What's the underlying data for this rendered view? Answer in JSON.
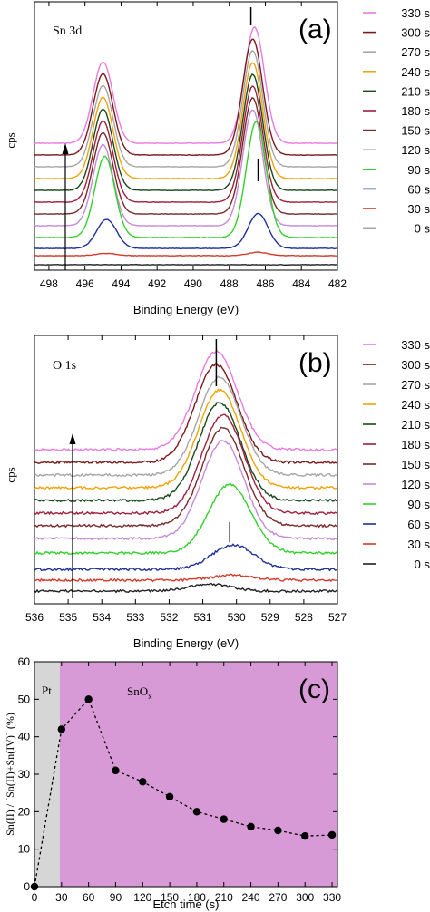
{
  "times": [
    "330 s",
    "300 s",
    "270 s",
    "240 s",
    "210 s",
    "180 s",
    "150 s",
    "120 s",
    "90 s",
    "60 s",
    "30 s",
    "0 s"
  ],
  "colors": [
    "#e97be0",
    "#7a1a1a",
    "#a6a6a6",
    "#f0a30a",
    "#1a4a1a",
    "#a01f3b",
    "#7a2a2a",
    "#c58ad8",
    "#32d12a",
    "#1f2f9a",
    "#d43a2a",
    "#222222"
  ],
  "chart_data": [
    {
      "type": "line",
      "panel": "(a)",
      "annotation": "Sn 3d",
      "xlabel": "Binding Energy (eV)",
      "ylabel": "cps",
      "xlim": [
        498.8,
        482
      ],
      "reversed_x": true,
      "x_ticks": [
        "498",
        "496",
        "494",
        "492",
        "490",
        "488",
        "486",
        "484",
        "482"
      ],
      "series": [
        {
          "name": "330 s",
          "peaks": [
            {
              "x": 495.0,
              "height": 0.7
            },
            {
              "x": 486.6,
              "height": 1.0
            }
          ]
        },
        {
          "name": "300 s",
          "peaks": [
            {
              "x": 495.0,
              "height": 0.7
            },
            {
              "x": 486.7,
              "height": 1.0
            }
          ]
        },
        {
          "name": "270 s",
          "peaks": [
            {
              "x": 495.0,
              "height": 0.7
            },
            {
              "x": 486.7,
              "height": 1.0
            }
          ]
        },
        {
          "name": "240 s",
          "peaks": [
            {
              "x": 495.0,
              "height": 0.7
            },
            {
              "x": 486.7,
              "height": 1.0
            }
          ]
        },
        {
          "name": "210 s",
          "peaks": [
            {
              "x": 495.0,
              "height": 0.7
            },
            {
              "x": 486.7,
              "height": 1.0
            }
          ]
        },
        {
          "name": "180 s",
          "peaks": [
            {
              "x": 495.0,
              "height": 0.7
            },
            {
              "x": 486.7,
              "height": 1.0
            }
          ]
        },
        {
          "name": "150 s",
          "peaks": [
            {
              "x": 495.0,
              "height": 0.7
            },
            {
              "x": 486.7,
              "height": 1.0
            }
          ]
        },
        {
          "name": "120 s",
          "peaks": [
            {
              "x": 495.0,
              "height": 0.7
            },
            {
              "x": 486.7,
              "height": 1.0
            }
          ]
        },
        {
          "name": "90 s",
          "peaks": [
            {
              "x": 494.9,
              "height": 0.7
            },
            {
              "x": 486.5,
              "height": 1.0
            }
          ]
        },
        {
          "name": "60 s",
          "peaks": [
            {
              "x": 494.8,
              "height": 0.25
            },
            {
              "x": 486.4,
              "height": 0.3
            }
          ]
        },
        {
          "name": "30 s",
          "peaks": [
            {
              "x": 494.8,
              "height": 0.02
            },
            {
              "x": 486.4,
              "height": 0.03
            }
          ]
        },
        {
          "name": "0 s",
          "peaks": []
        }
      ],
      "markers_x": [
        486.8,
        486.4
      ]
    },
    {
      "type": "line",
      "panel": "(b)",
      "annotation": "O 1s",
      "xlabel": "Binding Energy (eV)",
      "ylabel": "cps",
      "xlim": [
        536,
        527
      ],
      "reversed_x": true,
      "x_ticks": [
        "536",
        "535",
        "534",
        "533",
        "532",
        "531",
        "530",
        "529",
        "528",
        "527"
      ],
      "series": [
        {
          "name": "330 s",
          "peak": {
            "x": 530.6,
            "height": 1.0
          }
        },
        {
          "name": "300 s",
          "peak": {
            "x": 530.6,
            "height": 1.0
          }
        },
        {
          "name": "270 s",
          "peak": {
            "x": 530.5,
            "height": 1.0
          }
        },
        {
          "name": "240 s",
          "peak": {
            "x": 530.5,
            "height": 1.0
          }
        },
        {
          "name": "210 s",
          "peak": {
            "x": 530.5,
            "height": 1.0
          }
        },
        {
          "name": "180 s",
          "peak": {
            "x": 530.4,
            "height": 1.0
          }
        },
        {
          "name": "150 s",
          "peak": {
            "x": 530.4,
            "height": 1.0
          }
        },
        {
          "name": "120 s",
          "peak": {
            "x": 530.4,
            "height": 1.0
          }
        },
        {
          "name": "90 s",
          "peak": {
            "x": 530.2,
            "height": 0.7
          }
        },
        {
          "name": "60 s",
          "peak": {
            "x": 530.1,
            "height": 0.25
          }
        },
        {
          "name": "30 s",
          "peak": {
            "x": 530.1,
            "height": 0.05
          }
        },
        {
          "name": "0 s",
          "peak": {
            "x": 530.8,
            "height": 0.07
          }
        }
      ],
      "markers_x": [
        530.6,
        530.2
      ]
    },
    {
      "type": "scatter",
      "panel": "(c)",
      "xlabel": "Etch time (s)",
      "ylabel": "Sn(II) / [Sn(II)+Sn(IV)] (%)",
      "xlim": [
        0,
        336
      ],
      "ylim": [
        0,
        60
      ],
      "x_ticks": [
        "0",
        "30",
        "60",
        "90",
        "120",
        "150",
        "180",
        "210",
        "240",
        "270",
        "300",
        "330"
      ],
      "y_ticks": [
        "0",
        "10",
        "20",
        "30",
        "40",
        "50",
        "60"
      ],
      "regions": [
        {
          "label": "Pt",
          "from": 0,
          "to": 28,
          "color": "#d6d6d6"
        },
        {
          "label": "SnO",
          "subscript": "x",
          "from": 28,
          "to": 336,
          "color": "#d79ad6"
        }
      ],
      "x": [
        0,
        30,
        60,
        90,
        120,
        150,
        180,
        210,
        240,
        270,
        300,
        330
      ],
      "y": [
        0,
        42,
        50,
        31,
        28,
        24,
        20,
        18,
        16,
        15,
        13.5,
        13.8
      ]
    }
  ]
}
